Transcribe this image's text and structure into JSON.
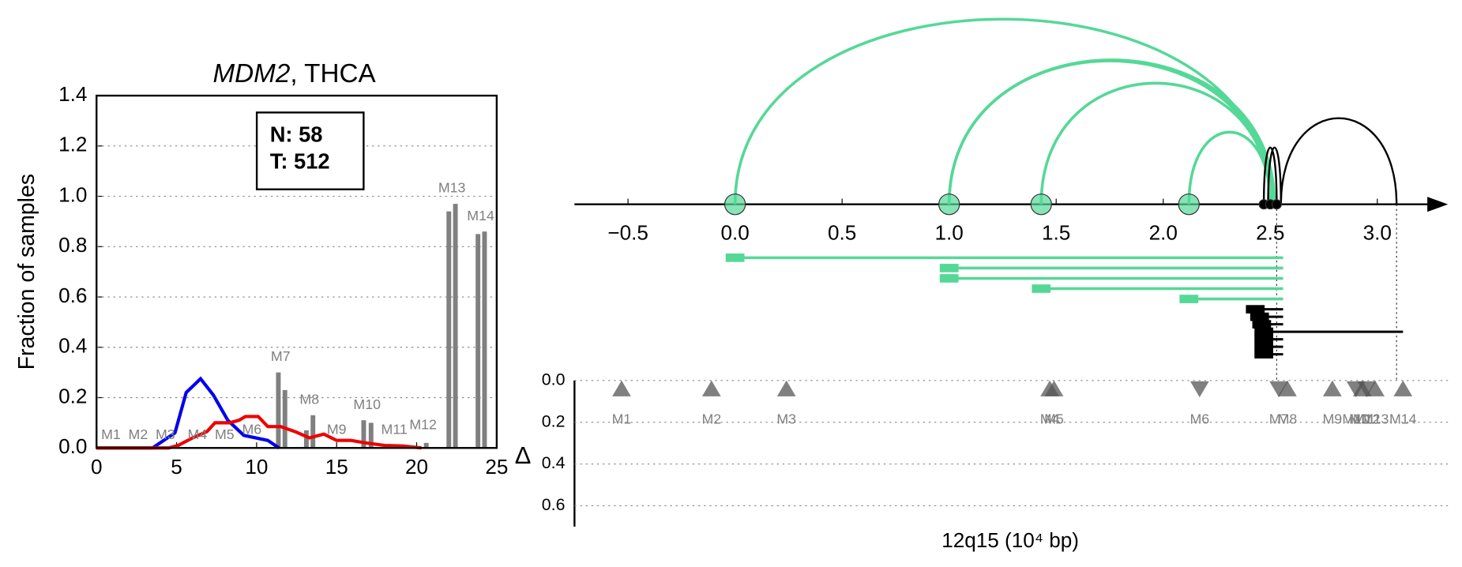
{
  "chart_data": [
    {
      "type": "line",
      "title_parts": [
        "MDM2",
        ", THCA"
      ],
      "ylabel": "Fraction of samples",
      "xlim": [
        0,
        25
      ],
      "xticks": [
        0,
        5,
        10,
        15,
        20,
        25
      ],
      "ylim": [
        0,
        1.4
      ],
      "yticks": [
        {
          "value": 0,
          "label": "0.0"
        },
        0.2,
        0.4,
        0.6,
        0.8,
        {
          "value": 1,
          "label": "1.0"
        },
        1.2,
        1.4
      ],
      "grid": true,
      "annotation": [
        "N: 58",
        "T: 512"
      ],
      "series": [
        {
          "color": "#0000ee",
          "x": [
            0,
            3.5,
            4.2,
            4.9,
            5.6,
            6.5,
            7.3,
            8.2,
            9.2,
            10.7,
            11.4
          ],
          "values": [
            0,
            0,
            0.03,
            0.06,
            0.22,
            0.275,
            0.21,
            0.11,
            0.05,
            0.03,
            0
          ]
        },
        {
          "color": "#ee0000",
          "x": [
            0,
            4.5,
            5.1,
            6,
            6.9,
            7.4,
            8.3,
            8.9,
            9.3,
            10.1,
            10.7,
            11.5,
            12.4,
            13.3,
            14.2,
            15,
            15.9,
            16.8,
            18,
            19.1,
            20.3
          ],
          "values": [
            0,
            0,
            0.01,
            0.04,
            0.065,
            0.1,
            0.1,
            0.11,
            0.125,
            0.125,
            0.085,
            0.085,
            0.065,
            0.04,
            0.055,
            0.03,
            0.03,
            0.02,
            0.01,
            0.008,
            0
          ]
        }
      ],
      "bars": {
        "color": "#808080",
        "x": [
          11.36,
          11.77,
          13.11,
          13.52,
          16.69,
          17.15,
          20.6,
          22.01,
          22.42,
          23.83,
          24.24
        ],
        "values": [
          0.3,
          0.23,
          0.07,
          0.13,
          0.11,
          0.1,
          0.02,
          0.94,
          0.97,
          0.85,
          0.86
        ]
      },
      "bar_labels": [
        {
          "text": "M1",
          "x": 0.9,
          "y": 0.05
        },
        {
          "text": "M2",
          "x": 2.6,
          "y": 0.05
        },
        {
          "text": "M3",
          "x": 4.3,
          "y": 0.05
        },
        {
          "text": "M4",
          "x": 6.3,
          "y": 0.05
        },
        {
          "text": "M5",
          "x": 8.0,
          "y": 0.05
        },
        {
          "text": "M6",
          "x": 9.7,
          "y": 0.07
        },
        {
          "text": "M7",
          "x": 11.5,
          "y": 0.36
        },
        {
          "text": "M8",
          "x": 13.3,
          "y": 0.19
        },
        {
          "text": "M9",
          "x": 15.0,
          "y": 0.07
        },
        {
          "text": "M10",
          "x": 16.9,
          "y": 0.17
        },
        {
          "text": "M11",
          "x": 18.6,
          "y": 0.07
        },
        {
          "text": "M12",
          "x": 20.4,
          "y": 0.09
        },
        {
          "text": "M13",
          "x": 22.2,
          "y": 1.03
        },
        {
          "text": "M14",
          "x": 24.0,
          "y": 0.92
        }
      ]
    },
    {
      "type": "arc",
      "xlabel": "12q15 (10⁴ bp)",
      "xlim": [
        -0.75,
        3.33
      ],
      "xticks": [
        {
          "value": -0.5,
          "label": "−0.5"
        },
        {
          "value": 0,
          "label": "0.0"
        },
        0.5,
        {
          "value": 1,
          "label": "1.0"
        },
        1.5,
        {
          "value": 2,
          "label": "2.0"
        },
        2.5,
        {
          "value": 3,
          "label": "3.0"
        }
      ],
      "green": "#55d897",
      "black": "#000000",
      "breakpoints": [
        {
          "x": 0.0,
          "color": "green"
        },
        {
          "x": 1.0,
          "color": "green"
        },
        {
          "x": 1.43,
          "color": "green"
        },
        {
          "x": 2.12,
          "color": "green"
        },
        {
          "x": 2.47,
          "color": "black"
        },
        {
          "x": 2.5,
          "color": "black"
        },
        {
          "x": 2.53,
          "color": "black"
        }
      ],
      "arcs": [
        {
          "from": 0.0,
          "to": 2.5,
          "color": "green"
        },
        {
          "from": 1.0,
          "to": 2.5,
          "color": "green"
        },
        {
          "from": 1.0,
          "to": 2.51,
          "color": "green"
        },
        {
          "from": 1.0,
          "to": 2.52,
          "color": "green"
        },
        {
          "from": 1.43,
          "to": 2.5,
          "color": "green"
        },
        {
          "from": 2.12,
          "to": 2.5,
          "color": "green"
        },
        {
          "from": 2.47,
          "to": 2.53,
          "color": "black"
        },
        {
          "from": 2.49,
          "to": 2.55,
          "color": "black"
        },
        {
          "from": 2.55,
          "to": 3.09,
          "color": "black"
        }
      ],
      "segments": [
        {
          "start": 0.0,
          "end": 2.56,
          "color": "green"
        },
        {
          "start": 1.0,
          "end": 2.56,
          "color": "green"
        },
        {
          "start": 1.0,
          "end": 2.56,
          "color": "green"
        },
        {
          "start": 1.43,
          "end": 2.56,
          "color": "green"
        },
        {
          "start": 2.12,
          "end": 2.56,
          "color": "green"
        },
        {
          "start": 2.43,
          "end": 2.56,
          "color": "black"
        },
        {
          "start": 2.45,
          "end": 2.56,
          "color": "black"
        },
        {
          "start": 2.46,
          "end": 2.56,
          "color": "black"
        },
        {
          "start": 2.47,
          "end": 3.12,
          "color": "black"
        },
        {
          "start": 2.47,
          "end": 2.56,
          "color": "black"
        },
        {
          "start": 2.47,
          "end": 2.56,
          "color": "black"
        },
        {
          "start": 2.47,
          "end": 2.56,
          "color": "black"
        }
      ],
      "guides": [
        2.53,
        3.09
      ],
      "markers": {
        "ylabel": "Δ",
        "ylim": [
          0,
          0.7
        ],
        "yticks": [
          {
            "value": 0,
            "label": "0.0"
          },
          0.2,
          0.4,
          0.6
        ],
        "items": [
          {
            "label": "M1",
            "x": -0.53,
            "delta": 0.04,
            "direction": "up"
          },
          {
            "label": "M2",
            "x": -0.11,
            "delta": 0.04,
            "direction": "up"
          },
          {
            "label": "M3",
            "x": 0.24,
            "delta": 0.04,
            "direction": "up"
          },
          {
            "label": "M4",
            "x": 1.47,
            "delta": 0.04,
            "direction": "up"
          },
          {
            "label": "M5",
            "x": 1.49,
            "delta": 0.04,
            "direction": "up"
          },
          {
            "label": "M6",
            "x": 2.17,
            "delta": 0.04,
            "direction": "down"
          },
          {
            "label": "M7",
            "x": 2.54,
            "delta": 0.04,
            "direction": "down"
          },
          {
            "label": "M8",
            "x": 2.58,
            "delta": 0.04,
            "direction": "up"
          },
          {
            "label": "M9",
            "x": 2.79,
            "delta": 0.04,
            "direction": "up"
          },
          {
            "label": "M10",
            "x": 2.9,
            "delta": 0.04,
            "direction": "down"
          },
          {
            "label": "M11",
            "x": 2.93,
            "delta": 0.04,
            "direction": "up"
          },
          {
            "label": "M12",
            "x": 2.95,
            "delta": 0.04,
            "direction": "down"
          },
          {
            "label": "M13",
            "x": 2.99,
            "delta": 0.04,
            "direction": "up"
          },
          {
            "label": "M14",
            "x": 3.12,
            "delta": 0.04,
            "direction": "up"
          }
        ]
      }
    }
  ]
}
